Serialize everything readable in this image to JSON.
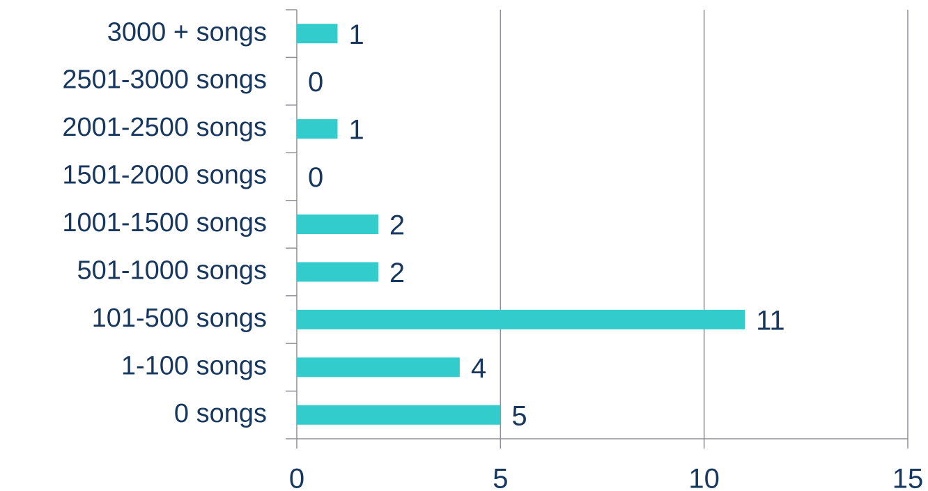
{
  "chart_data": {
    "type": "bar",
    "orientation": "horizontal",
    "categories": [
      "3000 + songs",
      "2501-3000 songs",
      "2001-2500 songs",
      "1501-2000 songs",
      "1001-1500 songs",
      "501-1000 songs",
      "101-500 songs",
      "1-100 songs",
      "0 songs"
    ],
    "values": [
      1,
      0,
      1,
      0,
      2,
      2,
      11,
      4,
      5
    ],
    "color": "#33cccc",
    "xlim": [
      0,
      15
    ],
    "xticks": [
      0,
      5,
      10,
      15
    ],
    "grid": true
  }
}
